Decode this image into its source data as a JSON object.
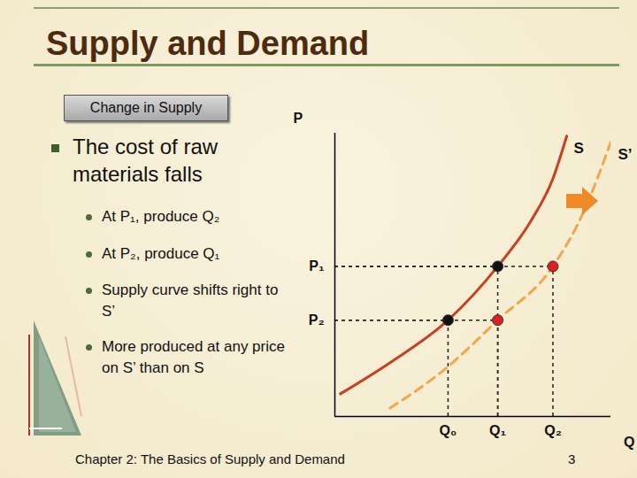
{
  "slide": {
    "title": "Supply and Demand",
    "box_label": "Change in Supply",
    "bullet": "The cost of raw materials falls",
    "sub_bullets": [
      "At P₁, produce Q₂",
      "At P₂, produce Q₁",
      "Supply curve shifts right to S’",
      "More produced at any price on S’ than on S"
    ],
    "footer": "Chapter 2: The Basics of Supply and Demand",
    "page_number": 3
  },
  "chart_data": {
    "type": "line",
    "x_label": "Q",
    "y_label": "P",
    "xlim": [
      0,
      10
    ],
    "ylim": [
      0,
      10
    ],
    "xticks": [
      {
        "value": 4.1,
        "label": "Q₀"
      },
      {
        "value": 5.9,
        "label": "Q₁"
      },
      {
        "value": 7.9,
        "label": "Q₂"
      }
    ],
    "yticks": [
      {
        "value": 3.4,
        "label": "P₂"
      },
      {
        "value": 5.3,
        "label": "P₁"
      }
    ],
    "grid": false,
    "series": [
      {
        "name": "S",
        "color": "#c8401e",
        "line_style": "solid",
        "x": [
          0.2,
          2.0,
          4.1,
          5.9,
          7.1,
          7.9,
          8.4
        ],
        "values": [
          0.8,
          1.9,
          3.4,
          5.3,
          6.9,
          8.4,
          9.9
        ]
      },
      {
        "name": "S’",
        "color": "#f2a54a",
        "line_style": "dashed",
        "x": [
          2.0,
          3.9,
          5.9,
          7.9,
          9.0,
          10.0
        ],
        "values": [
          0.3,
          1.6,
          3.4,
          5.3,
          7.2,
          9.7
        ]
      }
    ],
    "points": [
      {
        "x": 5.9,
        "y": 5.3,
        "color": "#111111"
      },
      {
        "x": 7.9,
        "y": 5.3,
        "color": "#e02020"
      },
      {
        "x": 4.1,
        "y": 3.4,
        "color": "#111111"
      },
      {
        "x": 5.9,
        "y": 3.4,
        "color": "#e02020"
      }
    ]
  }
}
